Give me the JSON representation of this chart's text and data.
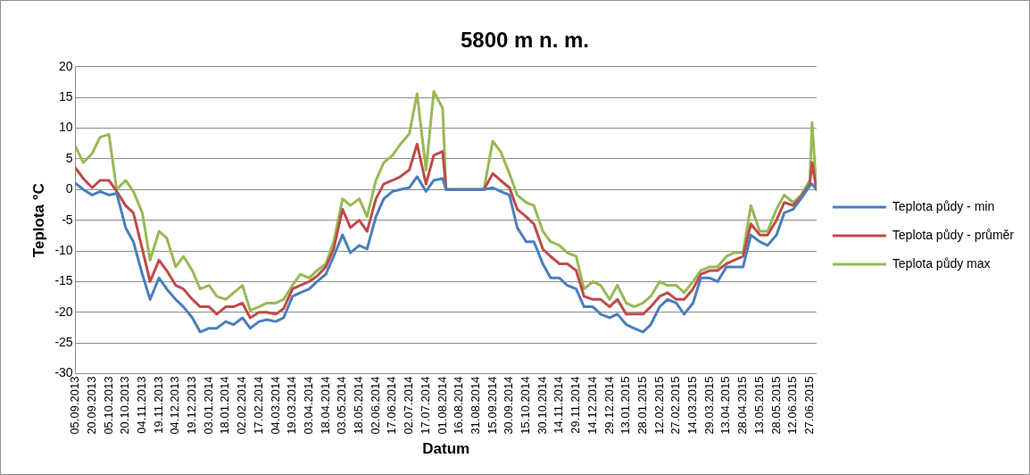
{
  "chart_data": {
    "type": "line",
    "title": "5800 m n. m.",
    "xlabel": "Datum",
    "ylabel": "Teplota °C",
    "x": [
      "2013-09-05",
      "2013-09-12",
      "2013-09-20",
      "2013-09-27",
      "2013-10-05",
      "2013-10-12",
      "2013-10-20",
      "2013-10-27",
      "2013-11-04",
      "2013-11-11",
      "2013-11-19",
      "2013-11-26",
      "2013-12-04",
      "2013-12-11",
      "2013-12-19",
      "2013-12-26",
      "2014-01-03",
      "2014-01-10",
      "2014-01-18",
      "2014-01-25",
      "2014-02-02",
      "2014-02-09",
      "2014-02-17",
      "2014-02-24",
      "2014-03-04",
      "2014-03-11",
      "2014-03-19",
      "2014-03-26",
      "2014-04-03",
      "2014-04-10",
      "2014-04-18",
      "2014-04-25",
      "2014-05-03",
      "2014-05-10",
      "2014-05-18",
      "2014-05-25",
      "2014-06-02",
      "2014-06-09",
      "2014-06-17",
      "2014-06-24",
      "2014-07-02",
      "2014-07-09",
      "2014-07-17",
      "2014-07-24",
      "2014-08-01",
      "2014-08-04",
      "2014-08-08",
      "2014-08-16",
      "2014-08-23",
      "2014-08-31",
      "2014-09-07",
      "2014-09-15",
      "2014-09-22",
      "2014-09-30",
      "2014-10-07",
      "2014-10-15",
      "2014-10-22",
      "2014-10-30",
      "2014-11-06",
      "2014-11-14",
      "2014-11-21",
      "2014-11-29",
      "2014-12-06",
      "2014-12-14",
      "2014-12-21",
      "2014-12-29",
      "2015-01-05",
      "2015-01-13",
      "2015-01-20",
      "2015-01-28",
      "2015-02-04",
      "2015-02-12",
      "2015-02-19",
      "2015-02-27",
      "2015-03-06",
      "2015-03-14",
      "2015-03-21",
      "2015-03-29",
      "2015-04-05",
      "2015-04-13",
      "2015-04-20",
      "2015-04-28",
      "2015-05-05",
      "2015-05-13",
      "2015-05-20",
      "2015-05-28",
      "2015-06-04",
      "2015-06-12",
      "2015-06-19",
      "2015-06-27",
      "2015-06-29",
      "2015-07-03"
    ],
    "series": [
      {
        "name": "Teplota půdy - min",
        "color": "#4a7ebb",
        "values": [
          1,
          0,
          -0.9,
          -0.3,
          -0.9,
          -0.6,
          -6.2,
          -8.5,
          -13.8,
          -17.9,
          -14.4,
          -16.2,
          -17.9,
          -19.1,
          -20.9,
          -23.2,
          -22.6,
          -22.6,
          -21.5,
          -22,
          -20.9,
          -22.6,
          -21.5,
          -21.2,
          -21.5,
          -20.9,
          -17.4,
          -16.8,
          -16.2,
          -15,
          -13.8,
          -10.9,
          -7.4,
          -10.3,
          -9.1,
          -9.7,
          -4.4,
          -1.5,
          -0.3,
          0,
          0.3,
          2.1,
          -0.3,
          1.5,
          1.8,
          0,
          0,
          0,
          0,
          0,
          0,
          0.3,
          -0.3,
          -0.9,
          -6.2,
          -8.5,
          -8.5,
          -12.1,
          -14.4,
          -14.4,
          -15.6,
          -16.2,
          -19.1,
          -19.1,
          -20.3,
          -20.9,
          -20.3,
          -22,
          -22.6,
          -23.2,
          -22,
          -19.1,
          -17.9,
          -18.5,
          -20.3,
          -18.5,
          -14.4,
          -14.4,
          -15,
          -12.6,
          -12.6,
          -12.6,
          -7.4,
          -8.5,
          -9.1,
          -7.4,
          -3.8,
          -3.2,
          -1.5,
          0.6,
          0.9,
          0
        ]
      },
      {
        "name": "Teplota půdy - průměr",
        "color": "#be4b48",
        "values": [
          3.5,
          1.8,
          0.3,
          1.5,
          1.5,
          -0.3,
          -2.6,
          -3.8,
          -9.7,
          -15,
          -11.5,
          -13.2,
          -15.6,
          -16.2,
          -17.9,
          -19.1,
          -19.1,
          -20.3,
          -19.1,
          -19.1,
          -18.5,
          -20.9,
          -20,
          -20,
          -20.3,
          -19.4,
          -16.2,
          -15.6,
          -15,
          -14.1,
          -12.6,
          -9.7,
          -3.2,
          -6.2,
          -5,
          -6.8,
          -1.5,
          0.9,
          1.5,
          2.1,
          3.2,
          7.4,
          0.9,
          5.6,
          6.2,
          0,
          0,
          0,
          0,
          0,
          0,
          2.6,
          1.5,
          0.3,
          -3.2,
          -4.4,
          -5.6,
          -9.7,
          -10.9,
          -12.1,
          -12.1,
          -13.2,
          -17.4,
          -17.9,
          -17.9,
          -19.1,
          -17.9,
          -20.3,
          -20.3,
          -20.3,
          -19.1,
          -17.4,
          -16.8,
          -17.9,
          -17.9,
          -16.2,
          -13.8,
          -13.2,
          -13.2,
          -12.1,
          -11.5,
          -10.9,
          -5.6,
          -7.4,
          -7.4,
          -5,
          -2.1,
          -2.6,
          -1.2,
          0.9,
          4.4,
          0
        ]
      },
      {
        "name": "Teplota půdy max",
        "color": "#98b954",
        "values": [
          7,
          4.4,
          5.9,
          8.5,
          9,
          0,
          1.5,
          -0.3,
          -3.8,
          -11.5,
          -6.8,
          -7.9,
          -12.6,
          -10.9,
          -13.2,
          -16.2,
          -15.6,
          -17.4,
          -17.9,
          -16.8,
          -15.6,
          -19.7,
          -19.1,
          -18.5,
          -18.5,
          -17.9,
          -15.6,
          -13.8,
          -14.4,
          -13.2,
          -12.1,
          -8.5,
          -1.5,
          -2.6,
          -1.5,
          -4.4,
          1.5,
          4.4,
          5.6,
          7.4,
          9.1,
          15.6,
          3.2,
          16,
          13.2,
          0,
          0,
          0,
          0,
          0,
          0,
          7.9,
          6.2,
          2.6,
          -0.9,
          -2.1,
          -2.6,
          -6.8,
          -8.5,
          -9.1,
          -10.3,
          -10.9,
          -16.2,
          -15,
          -15.6,
          -17.9,
          -15.6,
          -18.5,
          -19.1,
          -18.5,
          -17.4,
          -15,
          -15.6,
          -15.6,
          -16.8,
          -15,
          -13.2,
          -12.6,
          -12.6,
          -10.9,
          -10.3,
          -10.3,
          -2.6,
          -6.8,
          -6.8,
          -3.2,
          -0.9,
          -2.1,
          -0.9,
          1.5,
          10.9,
          0
        ]
      }
    ],
    "xlim": [
      "2013-09-05",
      "2015-07-03"
    ],
    "xticks": [
      {
        "value": "2013-09-05",
        "label": "05.09.2013"
      },
      {
        "value": "2013-09-20",
        "label": "20.09.2013"
      },
      {
        "value": "2013-10-05",
        "label": "05.10.2013"
      },
      {
        "value": "2013-10-20",
        "label": "20.10.2013"
      },
      {
        "value": "2013-11-04",
        "label": "04.11.2013"
      },
      {
        "value": "2013-11-19",
        "label": "19.11.2013"
      },
      {
        "value": "2013-12-04",
        "label": "04.12.2013"
      },
      {
        "value": "2013-12-19",
        "label": "19.12.2013"
      },
      {
        "value": "2014-01-03",
        "label": "03.01.2014"
      },
      {
        "value": "2014-01-18",
        "label": "18.01.2014"
      },
      {
        "value": "2014-02-02",
        "label": "02.02.2014"
      },
      {
        "value": "2014-02-17",
        "label": "17.02.2014"
      },
      {
        "value": "2014-03-04",
        "label": "04.03.2014"
      },
      {
        "value": "2014-03-19",
        "label": "19.03.2014"
      },
      {
        "value": "2014-04-03",
        "label": "03.04.2014"
      },
      {
        "value": "2014-04-18",
        "label": "18.04.2014"
      },
      {
        "value": "2014-05-03",
        "label": "03.05.2014"
      },
      {
        "value": "2014-05-18",
        "label": "18.05.2014"
      },
      {
        "value": "2014-06-02",
        "label": "02.06.2014"
      },
      {
        "value": "2014-06-17",
        "label": "17.06.2014"
      },
      {
        "value": "2014-07-02",
        "label": "02.07.2014"
      },
      {
        "value": "2014-07-17",
        "label": "17.07.2014"
      },
      {
        "value": "2014-08-01",
        "label": "01.08.2014"
      },
      {
        "value": "2014-08-16",
        "label": "16.08.2014"
      },
      {
        "value": "2014-08-31",
        "label": "31.08.2014"
      },
      {
        "value": "2014-09-15",
        "label": "15.09.2014"
      },
      {
        "value": "2014-09-30",
        "label": "30.09.2014"
      },
      {
        "value": "2014-10-15",
        "label": "15.10.2014"
      },
      {
        "value": "2014-10-30",
        "label": "30.10.2014"
      },
      {
        "value": "2014-11-14",
        "label": "14.11.2014"
      },
      {
        "value": "2014-11-29",
        "label": "29.11.2014"
      },
      {
        "value": "2014-12-14",
        "label": "14.12.2014"
      },
      {
        "value": "2014-12-29",
        "label": "29.12.2014"
      },
      {
        "value": "2015-01-13",
        "label": "13.01.2015"
      },
      {
        "value": "2015-01-28",
        "label": "28.01.2015"
      },
      {
        "value": "2015-02-12",
        "label": "12.02.2015"
      },
      {
        "value": "2015-02-27",
        "label": "27.02.2015"
      },
      {
        "value": "2015-03-14",
        "label": "14.03.2015"
      },
      {
        "value": "2015-03-29",
        "label": "29.03.2015"
      },
      {
        "value": "2015-04-13",
        "label": "13.04.2015"
      },
      {
        "value": "2015-04-28",
        "label": "28.04.2015"
      },
      {
        "value": "2015-05-13",
        "label": "13.05.2015"
      },
      {
        "value": "2015-05-28",
        "label": "28.05.2015"
      },
      {
        "value": "2015-06-12",
        "label": "12.06.2015"
      },
      {
        "value": "2015-06-27",
        "label": "27.06.2015"
      }
    ],
    "ylim": [
      -30,
      20
    ],
    "yticks": [
      -30,
      -25,
      -20,
      -15,
      -10,
      -5,
      0,
      5,
      10,
      15,
      20
    ],
    "grid": "y",
    "legend": "right",
    "marker": "none",
    "line_style": "solid"
  }
}
